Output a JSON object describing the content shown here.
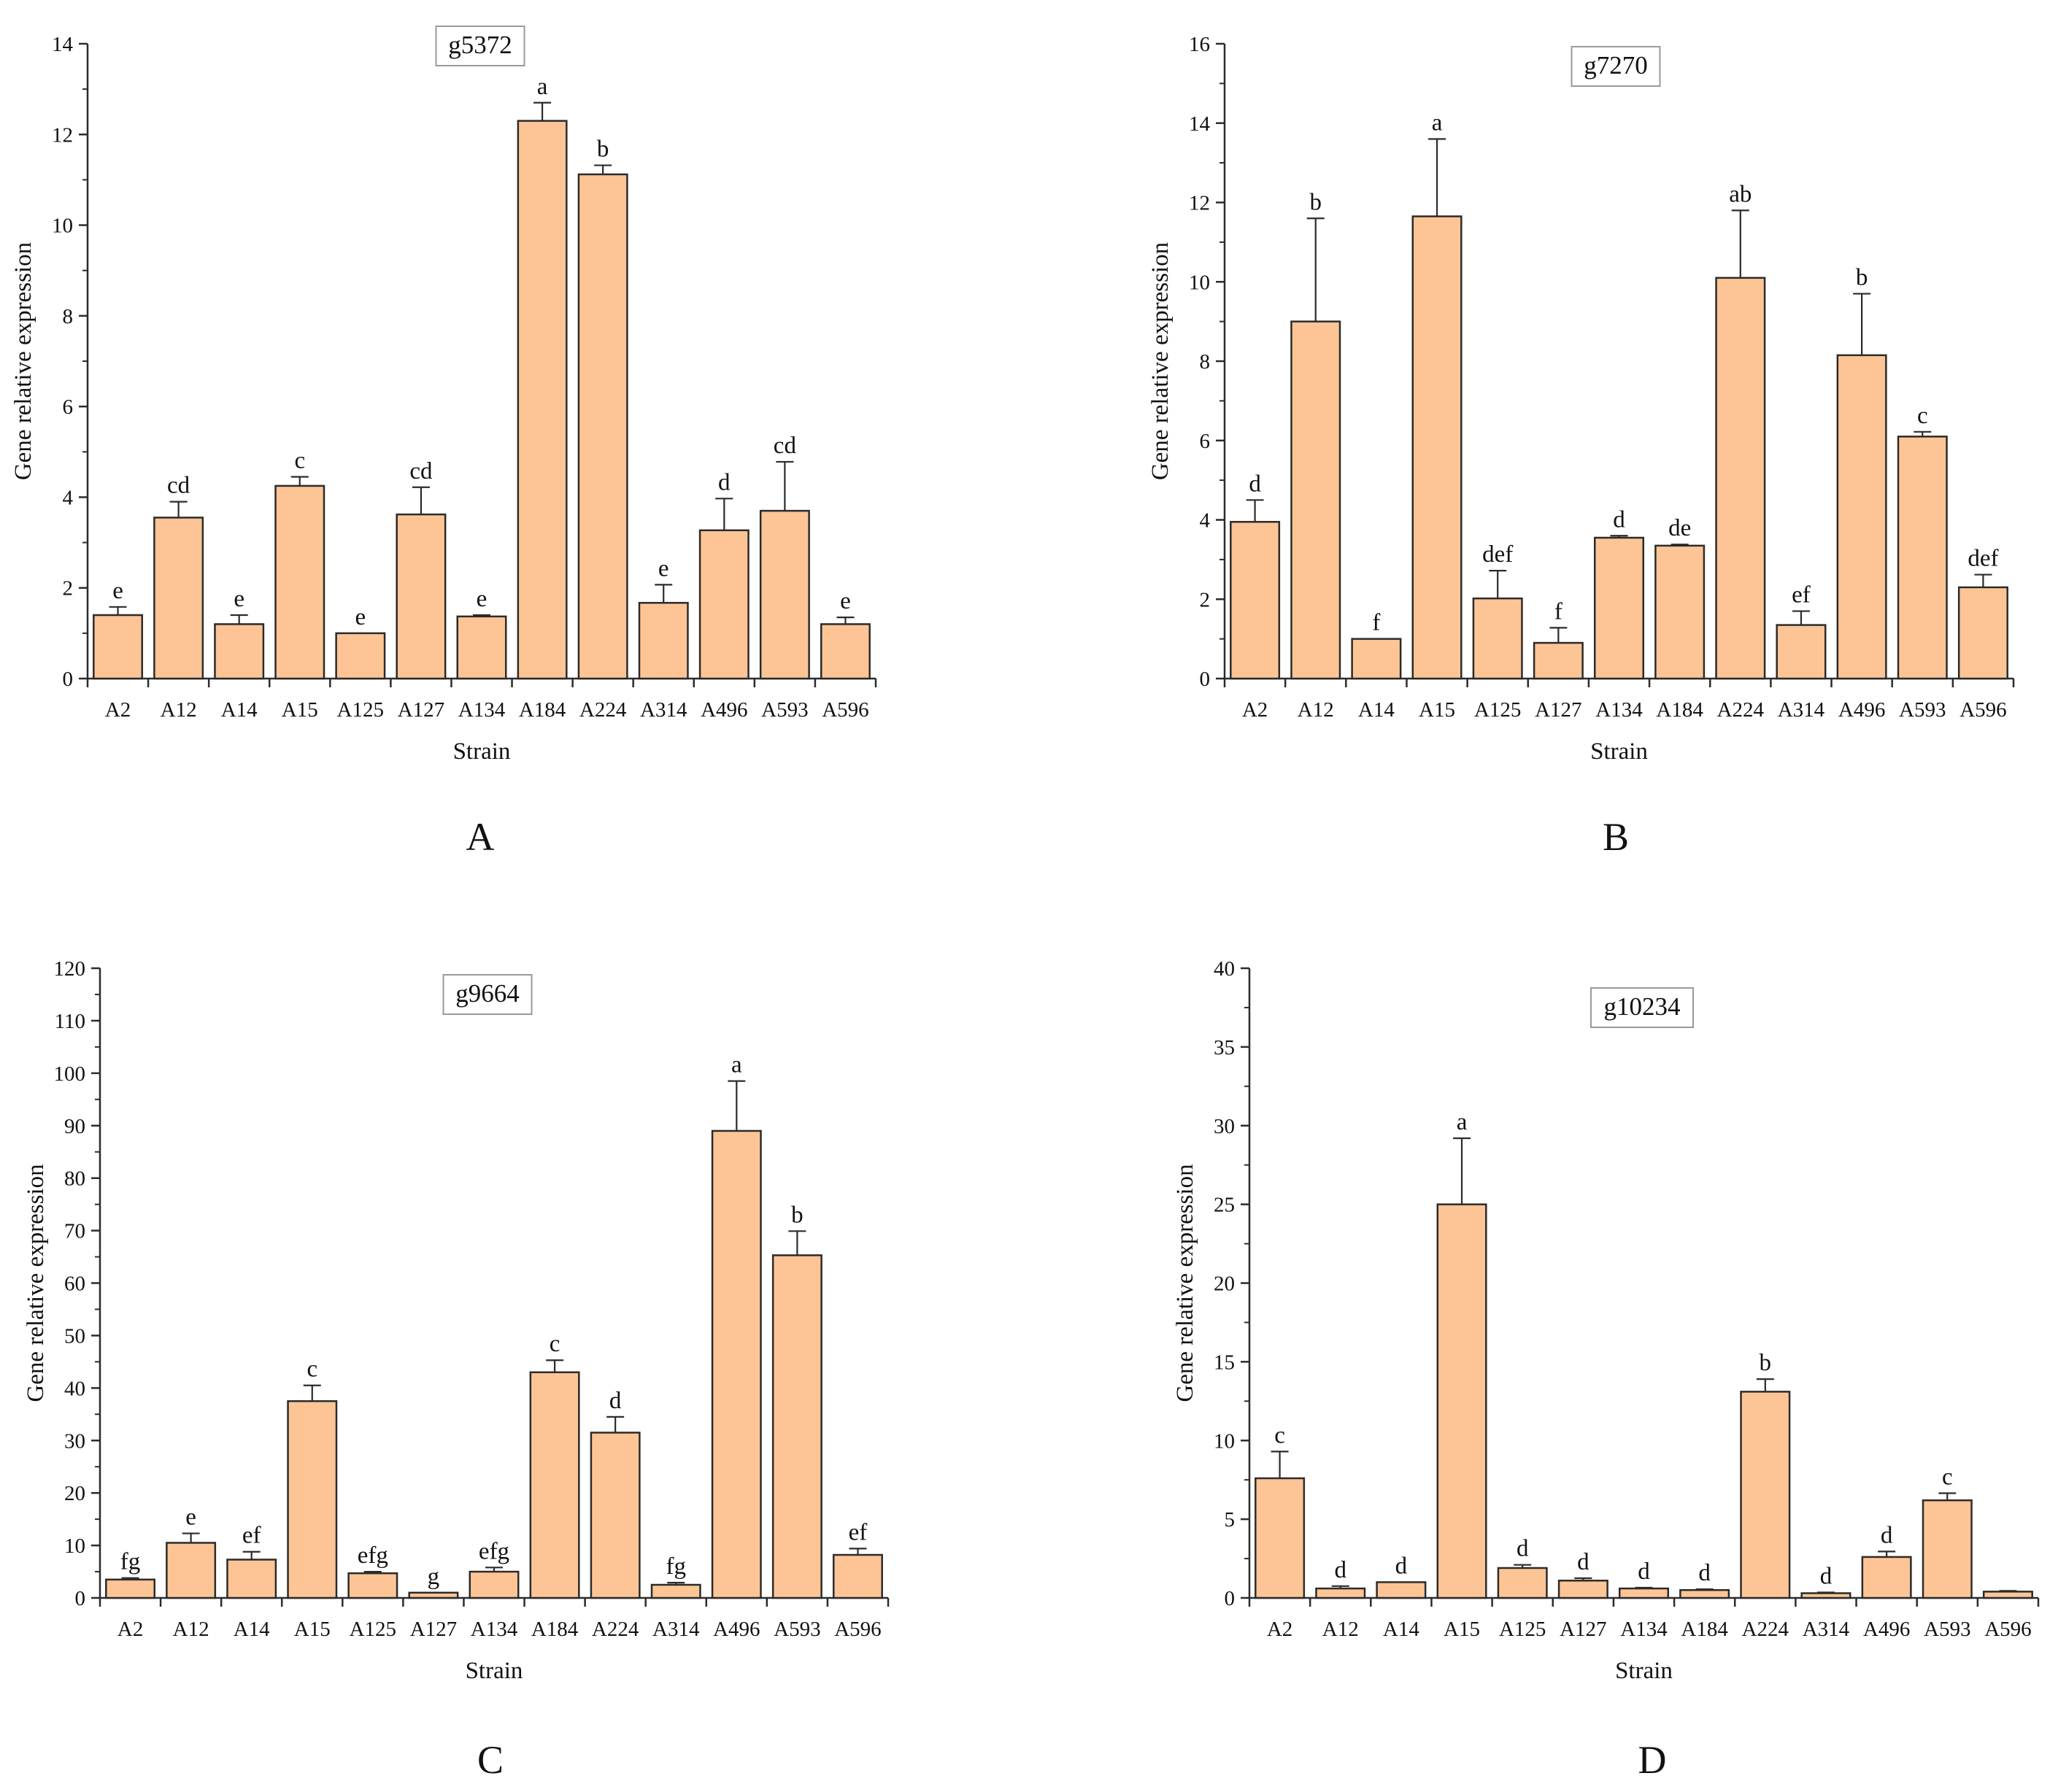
{
  "style": {
    "bar_fill": "#fdc595",
    "bar_stroke": "#2b2b2b",
    "axis_color": "#2b2b2b"
  },
  "chart_data": [
    {
      "type": "bar",
      "panel_letter": "A",
      "title": "g5372",
      "xlabel": "Strain",
      "ylabel": "Gene relative expression",
      "ylim": [
        0,
        14
      ],
      "ytick_step": 2,
      "categories": [
        "A2",
        "A12",
        "A14",
        "A15",
        "A125",
        "A127",
        "A134",
        "A184",
        "A224",
        "A314",
        "A496",
        "A593",
        "A596"
      ],
      "yticks": [
        "0",
        "2",
        "4",
        "6",
        "8",
        "10",
        "12",
        "14"
      ],
      "values": [
        1.4,
        3.55,
        1.2,
        4.25,
        1.0,
        3.62,
        1.37,
        12.3,
        11.12,
        1.67,
        3.27,
        3.7,
        1.2
      ],
      "errors": [
        0.18,
        0.35,
        0.2,
        0.2,
        0.0,
        0.6,
        0.03,
        0.4,
        0.2,
        0.4,
        0.7,
        1.08,
        0.15
      ],
      "letters": [
        "e",
        "cd",
        "e",
        "c",
        "e",
        "cd",
        "e",
        "a",
        "b",
        "e",
        "d",
        "cd",
        "e"
      ]
    },
    {
      "type": "bar",
      "panel_letter": "B",
      "title": "g7270",
      "xlabel": "Strain",
      "ylabel": "Gene relative expression",
      "ylim": [
        0,
        16
      ],
      "ytick_step": 2,
      "categories": [
        "A2",
        "A12",
        "A14",
        "A15",
        "A125",
        "A127",
        "A134",
        "A184",
        "A224",
        "A314",
        "A496",
        "A593",
        "A596"
      ],
      "yticks": [
        "0",
        "2",
        "4",
        "6",
        "8",
        "10",
        "12",
        "14",
        "16"
      ],
      "values": [
        3.95,
        9.0,
        1.0,
        11.65,
        2.02,
        0.9,
        3.55,
        3.35,
        10.1,
        1.35,
        8.15,
        6.1,
        2.3
      ],
      "errors": [
        0.55,
        2.6,
        0.0,
        1.95,
        0.7,
        0.38,
        0.05,
        0.03,
        1.7,
        0.35,
        1.55,
        0.12,
        0.32
      ],
      "letters": [
        "d",
        "b",
        "f",
        "a",
        "def",
        "f",
        "d",
        "de",
        "ab",
        "ef",
        "b",
        "c",
        "def"
      ]
    },
    {
      "type": "bar",
      "panel_letter": "C",
      "title": "g9664",
      "xlabel": "Strain",
      "ylabel": "Gene relative expression",
      "ylim": [
        0,
        120
      ],
      "ytick_step": 10,
      "categories": [
        "A2",
        "A12",
        "A14",
        "A15",
        "A125",
        "A127",
        "A134",
        "A184",
        "A224",
        "A314",
        "A496",
        "A593",
        "A596"
      ],
      "yticks": [
        "0",
        "10",
        "20",
        "30",
        "40",
        "50",
        "60",
        "70",
        "80",
        "90",
        "100",
        "110",
        "120"
      ],
      "values": [
        3.5,
        10.5,
        7.3,
        37.5,
        4.7,
        1.0,
        5.0,
        43.0,
        31.5,
        2.5,
        89.0,
        65.3,
        8.2
      ],
      "errors": [
        0.3,
        1.8,
        1.5,
        3.0,
        0.3,
        0.0,
        0.8,
        2.3,
        3.0,
        0.4,
        9.5,
        4.6,
        1.2
      ],
      "letters": [
        "fg",
        "e",
        "ef",
        "c",
        "efg",
        "g",
        "efg",
        "c",
        "d",
        "fg",
        "a",
        "b",
        "ef"
      ]
    },
    {
      "type": "bar",
      "panel_letter": "D",
      "title": "g10234",
      "xlabel": "Strain",
      "ylabel": "Gene relative expression",
      "ylim": [
        0,
        40
      ],
      "ytick_step": 5,
      "categories": [
        "A2",
        "A12",
        "A14",
        "A15",
        "A125",
        "A127",
        "A134",
        "A184",
        "A224",
        "A314",
        "A496",
        "A593",
        "A596"
      ],
      "yticks": [
        "0",
        "5",
        "10",
        "15",
        "20",
        "25",
        "30",
        "35",
        "40"
      ],
      "values": [
        7.6,
        0.6,
        1.0,
        25.0,
        1.9,
        1.1,
        0.6,
        0.5,
        13.1,
        0.3,
        2.6,
        6.2,
        0.4
      ],
      "errors": [
        1.7,
        0.15,
        0.0,
        4.2,
        0.2,
        0.15,
        0.05,
        0.05,
        0.8,
        0.05,
        0.35,
        0.45,
        0.05
      ],
      "letters": [
        "c",
        "d",
        "d",
        "a",
        "d",
        "d",
        "d",
        "d",
        "b",
        "d",
        "d",
        "c",
        ""
      ]
    }
  ]
}
